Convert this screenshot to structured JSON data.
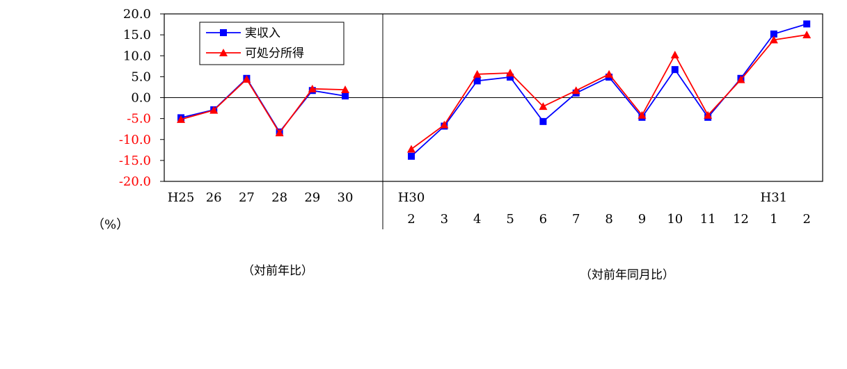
{
  "colors": {
    "income": "#0000ff",
    "disposable": "#ff0000",
    "neg_tick": "#ff0000",
    "pos_tick": "#000000",
    "axis": "#000000"
  },
  "chart_data": {
    "type": "line",
    "ylim": [
      -20,
      20
    ],
    "yticks": [
      "20.0",
      "15.0",
      "10.0",
      "5.0",
      "0.0",
      "-5.0",
      "-10.0",
      "-15.0",
      "-20.0"
    ],
    "ylabel": "（%）",
    "legend": {
      "placement": "top-left",
      "entries": [
        "実収入",
        "可処分所得"
      ]
    },
    "panels": [
      {
        "caption": "（対前年比）",
        "categories": [
          "H25",
          "26",
          "27",
          "28",
          "29",
          "30"
        ],
        "series": [
          {
            "name": "実収入",
            "marker": "square",
            "values": [
              -4.8,
              -2.9,
              4.6,
              -8.2,
              1.7,
              0.4
            ]
          },
          {
            "name": "可処分所得",
            "marker": "triangle",
            "values": [
              -5.2,
              -3.0,
              4.4,
              -8.4,
              2.1,
              1.9
            ]
          }
        ]
      },
      {
        "caption": "（対前年同月比）",
        "year_labels": [
          "H30",
          "H31"
        ],
        "categories": [
          "2",
          "3",
          "4",
          "5",
          "6",
          "7",
          "8",
          "9",
          "10",
          "11",
          "12",
          "1",
          "2"
        ],
        "series": [
          {
            "name": "実収入",
            "marker": "square",
            "values": [
              -14.0,
              -6.8,
              4.0,
              4.9,
              -5.7,
              1.1,
              4.9,
              -4.7,
              6.7,
              -4.7,
              4.6,
              15.2,
              17.6
            ]
          },
          {
            "name": "可処分所得",
            "marker": "triangle",
            "values": [
              -12.3,
              -6.5,
              5.6,
              5.9,
              -2.1,
              1.7,
              5.6,
              -4.2,
              10.2,
              -4.2,
              4.3,
              13.8,
              15.0
            ]
          }
        ]
      }
    ]
  }
}
